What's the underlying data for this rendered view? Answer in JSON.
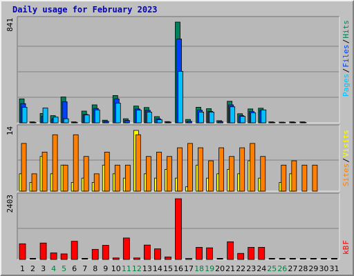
{
  "chart_data": [
    {
      "type": "bar",
      "title": "Daily usage for February 2023",
      "categories": [
        "1",
        "2",
        "3",
        "4",
        "5",
        "6",
        "7",
        "8",
        "9",
        "10",
        "11",
        "12",
        "13",
        "14",
        "15",
        "16",
        "17",
        "18",
        "19",
        "20",
        "21",
        "22",
        "23",
        "24",
        "25",
        "26",
        "27",
        "28",
        "29",
        "30",
        "31"
      ],
      "weekend_days": [
        "4",
        "5",
        "11",
        "12",
        "18",
        "19",
        "25",
        "26"
      ],
      "ylim": [
        0,
        841
      ],
      "max_label": "841",
      "legend": [
        "Pages",
        "/",
        "Files",
        "/",
        "Hits"
      ],
      "series": [
        {
          "name": "Hits",
          "color": "#00805c",
          "values": [
            200,
            8,
            78,
            60,
            216,
            8,
            98,
            150,
            22,
            228,
            34,
            140,
            128,
            52,
            10,
            841,
            28,
            130,
            118,
            18,
            180,
            76,
            116,
            122,
            8,
            6,
            8,
            8,
            0,
            0,
            0
          ]
        },
        {
          "name": "Files",
          "color": "#0040ff",
          "values": [
            160,
            4,
            54,
            34,
            176,
            4,
            70,
            120,
            12,
            200,
            20,
            116,
            104,
            34,
            6,
            700,
            12,
            106,
            96,
            10,
            150,
            60,
            94,
            104,
            4,
            4,
            4,
            4,
            0,
            0,
            0
          ]
        },
        {
          "name": "Pages",
          "color": "#00c0ff",
          "values": [
            130,
            0,
            124,
            48,
            34,
            0,
            66,
            108,
            0,
            164,
            0,
            106,
            90,
            26,
            0,
            430,
            0,
            90,
            90,
            0,
            134,
            54,
            84,
            108,
            0,
            0,
            0,
            0,
            0,
            0,
            0
          ]
        }
      ]
    },
    {
      "type": "bar",
      "ylim": [
        0,
        14
      ],
      "max_label": "14",
      "legend": [
        "Sites",
        "/",
        "Visits"
      ],
      "series": [
        {
          "name": "Visits",
          "color": "#ff8000",
          "values": [
            11,
            4,
            9,
            13,
            6,
            13,
            8,
            4,
            9,
            6,
            6,
            13,
            8,
            9,
            8,
            10,
            11,
            10,
            7,
            10,
            8,
            10,
            11,
            8,
            0,
            6,
            7,
            6,
            6,
            0,
            0
          ]
        },
        {
          "name": "Sites",
          "color": "#ffff00",
          "values": [
            4,
            2,
            8,
            4,
            6,
            2,
            3,
            2,
            6,
            4,
            3,
            14,
            4,
            3,
            5,
            3,
            1,
            6,
            3,
            4,
            5,
            4,
            7,
            3,
            0,
            2,
            4,
            0,
            0,
            0,
            0
          ]
        }
      ]
    },
    {
      "type": "bar",
      "ylim": [
        0,
        2403
      ],
      "max_label": "2403",
      "legend": [
        "kB",
        "F"
      ],
      "series": [
        {
          "name": "kB F",
          "color": "#ff0000",
          "values": [
            620,
            0,
            650,
            260,
            220,
            720,
            0,
            400,
            560,
            60,
            850,
            60,
            570,
            420,
            100,
            2403,
            40,
            480,
            460,
            0,
            700,
            240,
            480,
            480,
            0,
            0,
            0,
            0,
            0,
            0,
            0
          ]
        }
      ]
    }
  ],
  "colors": {
    "background": "#c0c0c0",
    "panel": "#b8b8b8",
    "title": "#0000c0",
    "day_label": "#000000",
    "weekend_label": "#008040",
    "hits": "#00805c",
    "files": "#0040ff",
    "pages": "#00c0ff",
    "visits": "#ff8000",
    "sites": "#ffff00",
    "kbytes": "#ff0000",
    "gridline": "#808080"
  }
}
